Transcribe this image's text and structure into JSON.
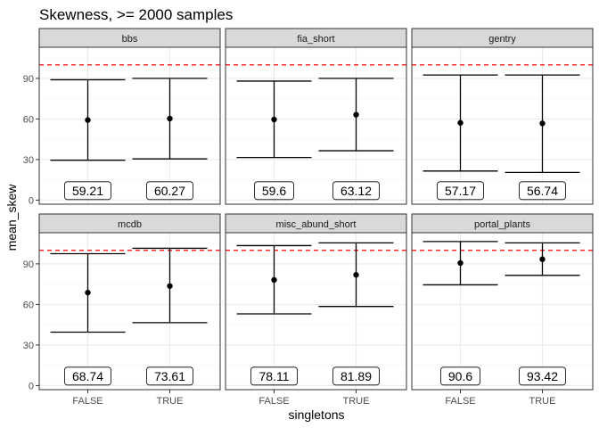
{
  "chart_data": {
    "type": "errorbar",
    "title": "Skewness, >= 2000 samples",
    "xlabel": "singletons",
    "ylabel": "mean_skew",
    "categories": [
      "FALSE",
      "TRUE"
    ],
    "y_ticks": [
      0,
      30,
      60,
      90
    ],
    "ylim": [
      -3,
      113
    ],
    "reference_line": {
      "value": 100,
      "color": "#ff0000",
      "style": "dashed"
    },
    "grid": true,
    "layout": {
      "rows": 2,
      "cols": 3
    },
    "panels": [
      {
        "name": "bbs",
        "points": [
          {
            "x": "FALSE",
            "mean": 59.21,
            "lower": 29.5,
            "upper": 89,
            "label": "59.21"
          },
          {
            "x": "TRUE",
            "mean": 60.27,
            "lower": 30.5,
            "upper": 90,
            "label": "60.27"
          }
        ]
      },
      {
        "name": "fia_short",
        "points": [
          {
            "x": "FALSE",
            "mean": 59.6,
            "lower": 31.5,
            "upper": 88,
            "label": "59.6"
          },
          {
            "x": "TRUE",
            "mean": 63.12,
            "lower": 36.5,
            "upper": 90,
            "label": "63.12"
          }
        ]
      },
      {
        "name": "gentry",
        "points": [
          {
            "x": "FALSE",
            "mean": 57.17,
            "lower": 21.5,
            "upper": 92.5,
            "label": "57.17"
          },
          {
            "x": "TRUE",
            "mean": 56.74,
            "lower": 20.5,
            "upper": 92.5,
            "label": "56.74"
          }
        ]
      },
      {
        "name": "mcdb",
        "points": [
          {
            "x": "FALSE",
            "mean": 68.74,
            "lower": 39.5,
            "upper": 97.5,
            "label": "68.74"
          },
          {
            "x": "TRUE",
            "mean": 73.61,
            "lower": 46.5,
            "upper": 101.5,
            "label": "73.61"
          }
        ]
      },
      {
        "name": "misc_abund_short",
        "points": [
          {
            "x": "FALSE",
            "mean": 78.11,
            "lower": 53,
            "upper": 103.5,
            "label": "78.11"
          },
          {
            "x": "TRUE",
            "mean": 81.89,
            "lower": 58.5,
            "upper": 105.5,
            "label": "81.89"
          }
        ]
      },
      {
        "name": "portal_plants",
        "points": [
          {
            "x": "FALSE",
            "mean": 90.6,
            "lower": 74.5,
            "upper": 106.5,
            "label": "90.6"
          },
          {
            "x": "TRUE",
            "mean": 93.42,
            "lower": 81.5,
            "upper": 105.5,
            "label": "93.42"
          }
        ]
      }
    ],
    "colors": {
      "panel_border": "#333333",
      "strip_fill": "#d9d9d9",
      "grid_major": "#ebebeb",
      "grid_minor": "#f5f5f5",
      "ink": "#000000",
      "reference": "#ff0000"
    }
  }
}
